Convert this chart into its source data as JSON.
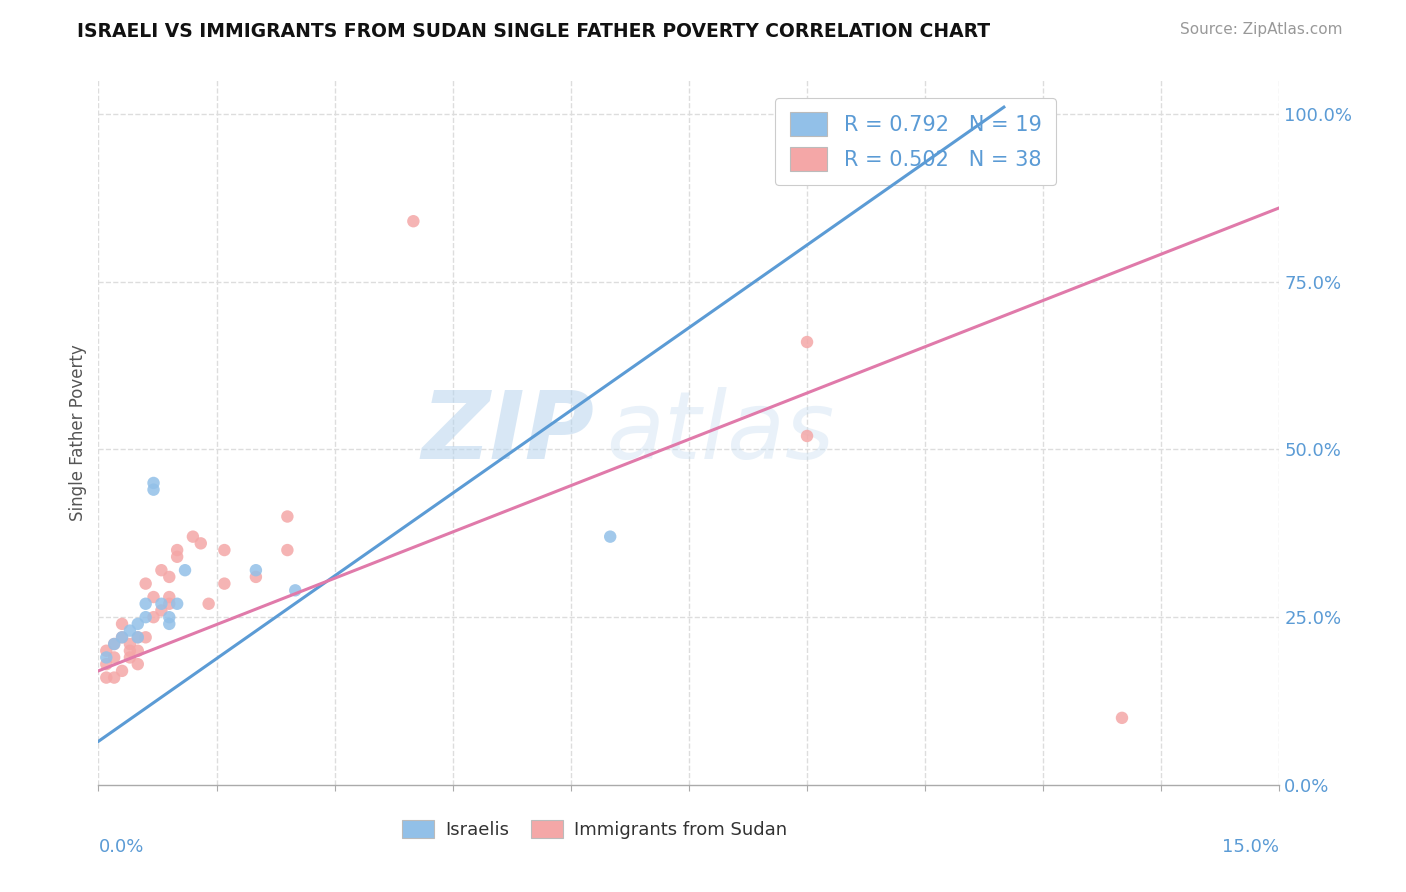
{
  "title": "ISRAELI VS IMMIGRANTS FROM SUDAN SINGLE FATHER POVERTY CORRELATION CHART",
  "source": "Source: ZipAtlas.com",
  "ylabel": "Single Father Poverty",
  "ylabel_right_ticks": [
    "100.0%",
    "75.0%",
    "50.0%",
    "25.0%",
    "0.0%"
  ],
  "ylabel_right_values": [
    1.0,
    0.75,
    0.5,
    0.25,
    0.0
  ],
  "legend1_label": "R = 0.792   N = 19",
  "legend2_label": "R = 0.502   N = 38",
  "watermark_zip": "ZIP",
  "watermark_atlas": "atlas",
  "blue_color": "#92c0e8",
  "pink_color": "#f4a7a7",
  "blue_line_color": "#5b9bd5",
  "pink_line_color": "#e07aaa",
  "title_color": "#222222",
  "source_color": "#999999",
  "israelis_x": [
    0.001,
    0.002,
    0.003,
    0.004,
    0.005,
    0.005,
    0.006,
    0.006,
    0.007,
    0.007,
    0.008,
    0.009,
    0.009,
    0.01,
    0.011,
    0.02,
    0.025,
    0.065,
    0.112
  ],
  "israelis_y": [
    0.19,
    0.21,
    0.22,
    0.23,
    0.24,
    0.22,
    0.27,
    0.25,
    0.45,
    0.44,
    0.27,
    0.24,
    0.25,
    0.27,
    0.32,
    0.32,
    0.29,
    0.37,
    0.97
  ],
  "sudan_x": [
    0.001,
    0.001,
    0.001,
    0.002,
    0.002,
    0.002,
    0.003,
    0.003,
    0.003,
    0.004,
    0.004,
    0.004,
    0.005,
    0.005,
    0.005,
    0.006,
    0.006,
    0.007,
    0.007,
    0.008,
    0.008,
    0.009,
    0.009,
    0.009,
    0.01,
    0.01,
    0.012,
    0.013,
    0.014,
    0.016,
    0.016,
    0.02,
    0.024,
    0.024,
    0.09,
    0.09,
    0.13,
    0.04
  ],
  "sudan_y": [
    0.16,
    0.18,
    0.2,
    0.16,
    0.19,
    0.21,
    0.17,
    0.22,
    0.24,
    0.19,
    0.21,
    0.2,
    0.18,
    0.2,
    0.22,
    0.22,
    0.3,
    0.25,
    0.28,
    0.26,
    0.32,
    0.27,
    0.28,
    0.31,
    0.34,
    0.35,
    0.37,
    0.36,
    0.27,
    0.3,
    0.35,
    0.31,
    0.4,
    0.35,
    0.52,
    0.66,
    0.1,
    0.84
  ],
  "blue_line_x": [
    0.0,
    0.115
  ],
  "blue_line_y": [
    0.065,
    1.01
  ],
  "pink_line_x": [
    0.0,
    0.15
  ],
  "pink_line_y": [
    0.17,
    0.86
  ],
  "xlim": [
    0.0,
    0.15
  ],
  "ylim": [
    0.0,
    1.05
  ],
  "grid_color": "#dddddd"
}
